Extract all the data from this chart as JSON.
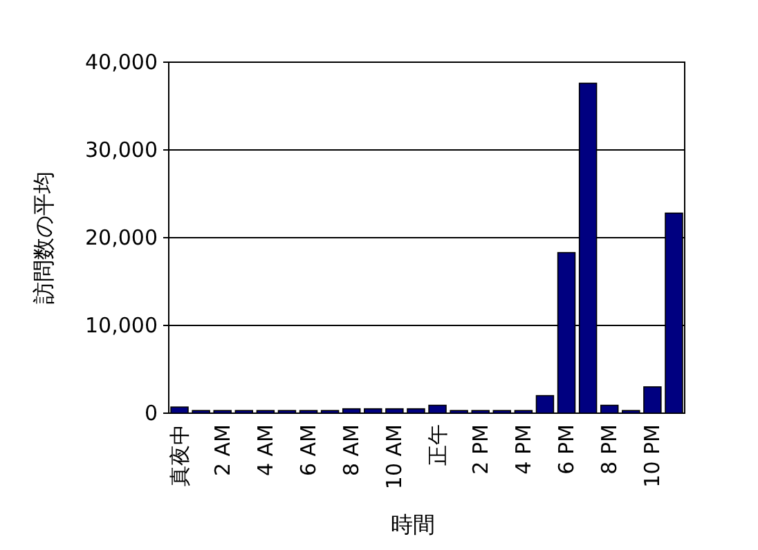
{
  "chart_data": {
    "type": "bar",
    "xlabel": "時間",
    "ylabel": "訪問数の平均",
    "categories": [
      "真夜中",
      null,
      "2 AM",
      null,
      "4 AM",
      null,
      "6 AM",
      null,
      "8 AM",
      null,
      "10 AM",
      null,
      "正午",
      null,
      "2 PM",
      null,
      "4 PM",
      null,
      "6 PM",
      null,
      "8 PM",
      null,
      "10 PM",
      null
    ],
    "values": [
      700,
      300,
      300,
      300,
      300,
      300,
      300,
      300,
      500,
      500,
      500,
      500,
      900,
      300,
      300,
      300,
      300,
      2000,
      18300,
      37600,
      900,
      300,
      3000,
      22800
    ],
    "color": "#000080",
    "ylim": [
      0,
      40000
    ],
    "yticks": [
      0,
      {
        "value": 10000,
        "label": "10,000"
      },
      {
        "value": 20000,
        "label": "20,000"
      },
      {
        "value": 30000,
        "label": "30,000"
      },
      {
        "value": 40000,
        "label": "40,000"
      }
    ],
    "grid": "y"
  }
}
